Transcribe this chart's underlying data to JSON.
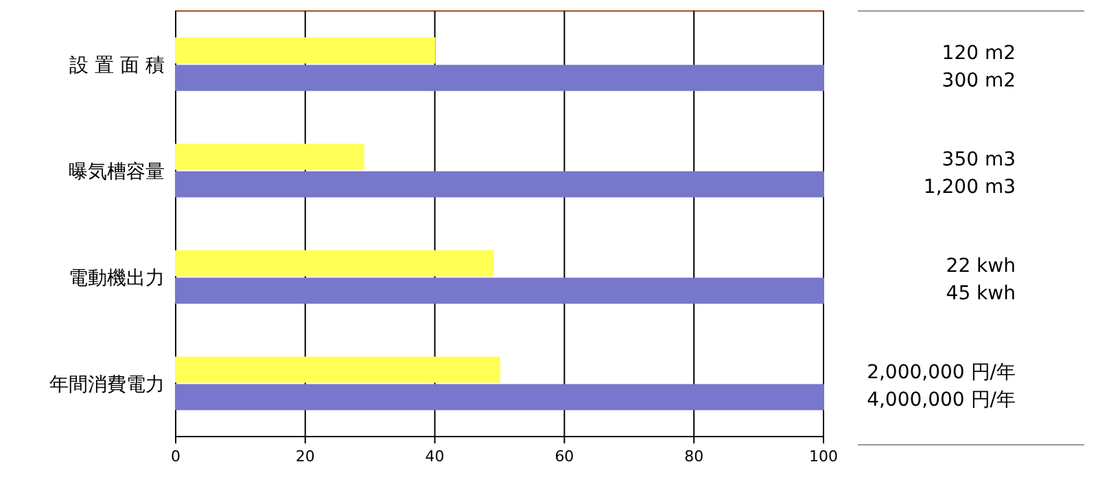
{
  "chart_data": {
    "type": "bar",
    "orientation": "horizontal",
    "categories": [
      "設 置 面 積",
      "曝気槽容量",
      "電動機出力",
      "年間消費電力"
    ],
    "series": [
      {
        "color": "#ffff55",
        "values": [
          40,
          29,
          49,
          50
        ]
      },
      {
        "color": "#7777cc",
        "values": [
          100,
          100,
          100,
          100
        ]
      }
    ],
    "annotations": [
      "120 m2",
      "300 m2",
      "350 m3",
      "1,200 m3",
      "22 kwh",
      "45 kwh",
      "2,000,000 円/年",
      "4,000,000 円/年"
    ],
    "xlim": [
      0,
      100
    ],
    "xticks": [
      0,
      20,
      40,
      60,
      80,
      100
    ],
    "grid": "x"
  }
}
